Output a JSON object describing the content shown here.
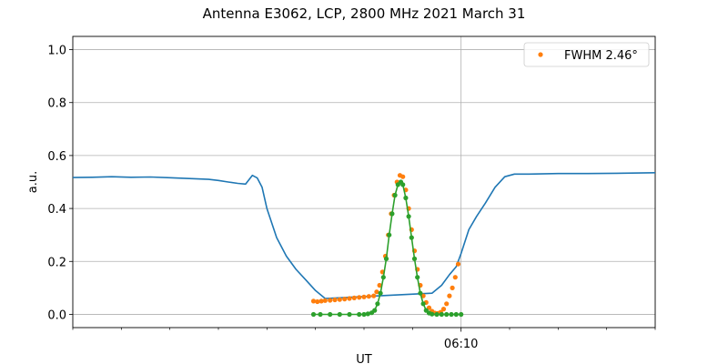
{
  "chart_data": {
    "type": "line",
    "title": "Antenna E3062, LCP, 2800 MHz 2021 March 31",
    "xlabel": "UT",
    "ylabel": "a.u.",
    "xlim": [
      0,
      60
    ],
    "ylim": [
      -0.05,
      1.05
    ],
    "x_tick_labels": [
      {
        "x": 40,
        "label": "06:10"
      }
    ],
    "x_minor_ticks": [
      0,
      5,
      10,
      15,
      20,
      25,
      30,
      35,
      45,
      50,
      55,
      60
    ],
    "y_ticks": [
      0.0,
      0.2,
      0.4,
      0.6,
      0.8,
      1.0
    ],
    "y_tick_labels": [
      "0.0",
      "0.2",
      "0.4",
      "0.6",
      "0.8",
      "1.0"
    ],
    "grid": true,
    "vertical_marker_x": 40,
    "legend": {
      "position": "top-right",
      "entries": [
        "FWHM 2.46$^\\circ$"
      ],
      "display": [
        "FWHM 2.46°"
      ]
    },
    "colors": {
      "blue": "#1f77b4",
      "orange": "#ff7f0e",
      "green": "#2ca02c",
      "grid": "#b0b0b0"
    },
    "series": [
      {
        "style": "line",
        "color": "#1f77b4",
        "x": [
          0,
          2,
          4,
          6,
          8,
          10,
          12,
          14,
          15,
          16,
          17,
          17.8,
          18.5,
          19,
          19.5,
          20,
          21,
          22,
          23,
          24,
          25,
          26,
          37,
          38,
          38.8,
          39.5,
          40,
          40.8,
          41.6,
          42.5,
          43.5,
          44.5,
          45.5,
          47,
          50,
          53,
          56,
          60
        ],
        "y": [
          0.517,
          0.518,
          0.52,
          0.518,
          0.519,
          0.516,
          0.513,
          0.51,
          0.506,
          0.5,
          0.495,
          0.492,
          0.525,
          0.515,
          0.48,
          0.4,
          0.29,
          0.22,
          0.17,
          0.13,
          0.09,
          0.06,
          0.08,
          0.11,
          0.15,
          0.18,
          0.23,
          0.32,
          0.37,
          0.42,
          0.48,
          0.52,
          0.53,
          0.53,
          0.532,
          0.532,
          0.533,
          0.535
        ]
      },
      {
        "style": "scatter",
        "color": "#ff7f0e",
        "x": [
          24.8,
          25.2,
          25.6,
          26,
          26.5,
          27,
          27.5,
          28,
          28.5,
          29,
          29.5,
          30,
          30.5,
          31,
          31.3,
          31.6,
          31.9,
          32.2,
          32.5,
          32.8,
          33.1,
          33.4,
          33.7,
          34.0,
          34.3,
          34.6,
          34.9,
          35.2,
          35.5,
          35.8,
          36.1,
          36.4,
          36.7,
          37.0,
          37.3,
          37.6,
          37.9,
          38.2,
          38.5,
          38.8,
          39.1,
          39.4,
          39.7
        ],
        "y": [
          0.05,
          0.048,
          0.05,
          0.052,
          0.053,
          0.055,
          0.056,
          0.058,
          0.06,
          0.062,
          0.064,
          0.066,
          0.068,
          0.07,
          0.085,
          0.11,
          0.16,
          0.22,
          0.3,
          0.38,
          0.45,
          0.5,
          0.525,
          0.52,
          0.47,
          0.4,
          0.32,
          0.24,
          0.17,
          0.11,
          0.07,
          0.045,
          0.025,
          0.012,
          0.005,
          0.004,
          0.008,
          0.02,
          0.04,
          0.07,
          0.1,
          0.14,
          0.19
        ]
      },
      {
        "style": "line+scatter",
        "color": "#2ca02c",
        "x": [
          24.8,
          25.5,
          26.5,
          27.5,
          28.5,
          29.5,
          30.0,
          30.4,
          30.8,
          31.1,
          31.4,
          31.7,
          32.0,
          32.3,
          32.6,
          32.9,
          33.2,
          33.5,
          33.8,
          34.0,
          34.3,
          34.6,
          34.9,
          35.2,
          35.5,
          35.8,
          36.1,
          36.4,
          36.7,
          37.0,
          37.5,
          38.0,
          38.5,
          39.0,
          39.5,
          40.0
        ],
        "y": [
          0,
          0,
          0,
          0,
          0,
          0,
          0,
          0.002,
          0.006,
          0.015,
          0.04,
          0.08,
          0.14,
          0.21,
          0.3,
          0.38,
          0.45,
          0.49,
          0.5,
          0.49,
          0.44,
          0.37,
          0.29,
          0.21,
          0.14,
          0.08,
          0.04,
          0.015,
          0.005,
          0.001,
          0,
          0,
          0,
          0,
          0,
          0
        ]
      }
    ]
  }
}
